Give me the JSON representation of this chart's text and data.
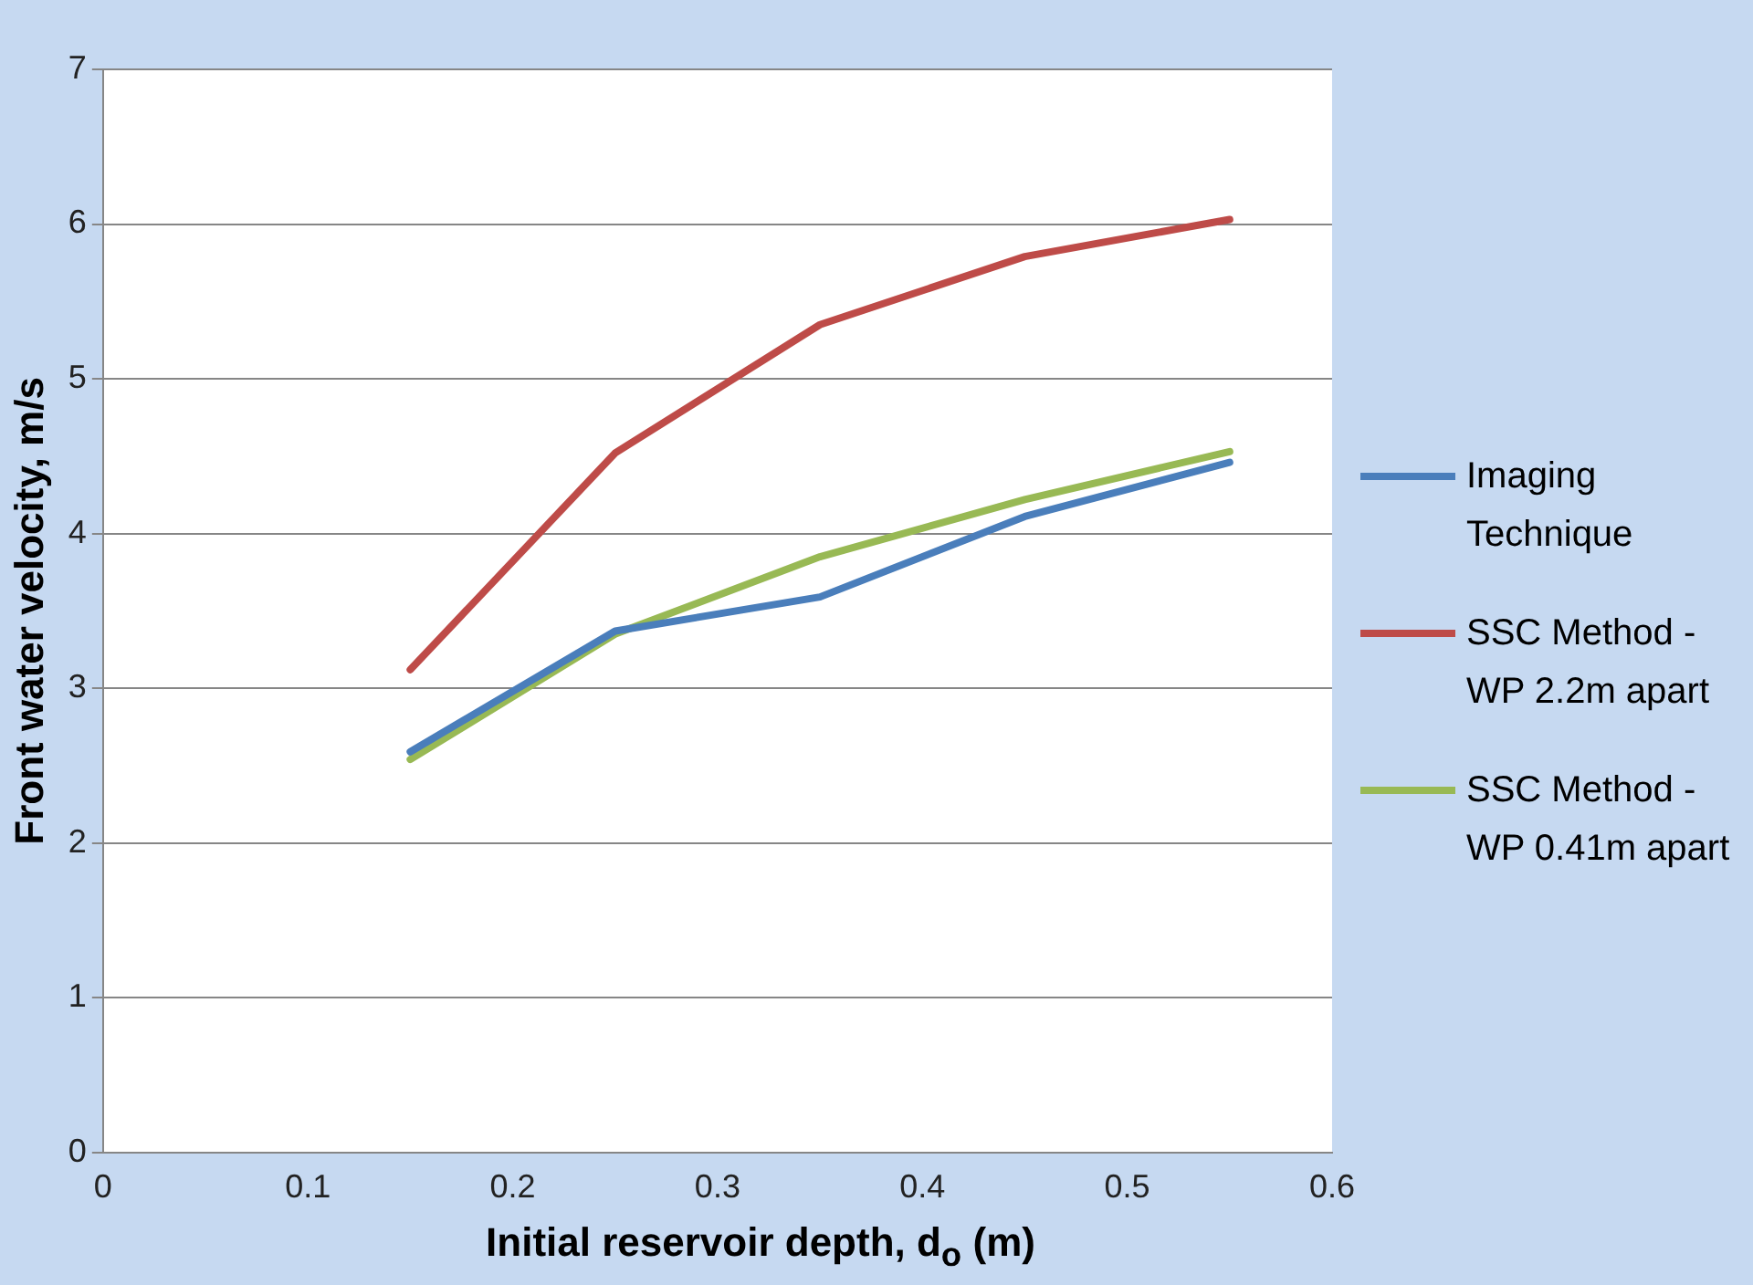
{
  "chart_data": {
    "type": "line",
    "xlabel": "Initial reservoir depth, d$_{o}$ (m)",
    "ylabel": "Front water velocity, m/s",
    "x": [
      0.15,
      0.25,
      0.35,
      0.45,
      0.55
    ],
    "series": [
      {
        "name": "Imaging Technique",
        "color": "#4a7ebb",
        "values": [
          2.59,
          3.37,
          3.59,
          4.11,
          4.46
        ]
      },
      {
        "name": "SSC Method - WP 2.2m apart",
        "color": "#be4b48",
        "values": [
          3.12,
          4.52,
          5.35,
          5.79,
          6.03
        ]
      },
      {
        "name": "SSC Method - WP 0.41m apart",
        "color": "#98b954",
        "values": [
          2.54,
          3.35,
          3.85,
          4.22,
          4.53
        ]
      }
    ],
    "xlim": [
      0,
      0.6
    ],
    "xticks": [
      0,
      0.1,
      0.2,
      0.3,
      0.4,
      0.5,
      0.6
    ],
    "ylim": [
      0,
      7
    ],
    "yticks": [
      0,
      1,
      2,
      3,
      4,
      5,
      6,
      7
    ],
    "grid": "y",
    "legend": "right",
    "marker": "none",
    "line_style": "solid"
  }
}
